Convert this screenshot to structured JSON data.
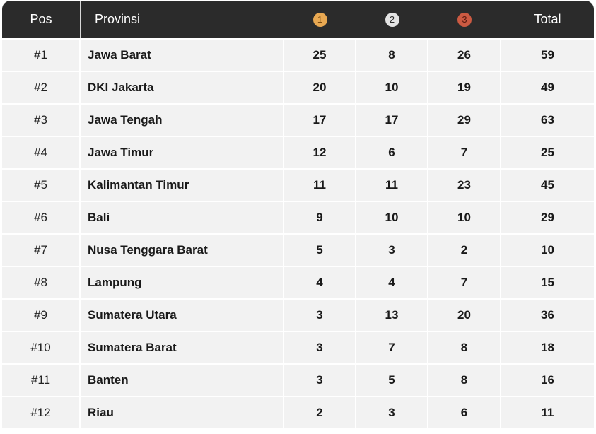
{
  "table": {
    "headers": {
      "pos": "Pos",
      "province": "Provinsi",
      "gold": "1",
      "silver": "2",
      "bronze": "3",
      "total": "Total"
    },
    "medal_colors": {
      "gold": "#e8a852",
      "silver": "#e3e3e3",
      "bronze": "#cc5a42"
    },
    "rows": [
      {
        "pos": "#1",
        "province": "Jawa Barat",
        "gold": "25",
        "silver": "8",
        "bronze": "26",
        "total": "59"
      },
      {
        "pos": "#2",
        "province": "DKI Jakarta",
        "gold": "20",
        "silver": "10",
        "bronze": "19",
        "total": "49"
      },
      {
        "pos": "#3",
        "province": "Jawa Tengah",
        "gold": "17",
        "silver": "17",
        "bronze": "29",
        "total": "63"
      },
      {
        "pos": "#4",
        "province": "Jawa Timur",
        "gold": "12",
        "silver": "6",
        "bronze": "7",
        "total": "25"
      },
      {
        "pos": "#5",
        "province": "Kalimantan Timur",
        "gold": "11",
        "silver": "11",
        "bronze": "23",
        "total": "45"
      },
      {
        "pos": "#6",
        "province": "Bali",
        "gold": "9",
        "silver": "10",
        "bronze": "10",
        "total": "29"
      },
      {
        "pos": "#7",
        "province": "Nusa Tenggara Barat",
        "gold": "5",
        "silver": "3",
        "bronze": "2",
        "total": "10"
      },
      {
        "pos": "#8",
        "province": "Lampung",
        "gold": "4",
        "silver": "4",
        "bronze": "7",
        "total": "15"
      },
      {
        "pos": "#9",
        "province": "Sumatera Utara",
        "gold": "3",
        "silver": "13",
        "bronze": "20",
        "total": "36"
      },
      {
        "pos": "#10",
        "province": "Sumatera Barat",
        "gold": "3",
        "silver": "7",
        "bronze": "8",
        "total": "18"
      },
      {
        "pos": "#11",
        "province": "Banten",
        "gold": "3",
        "silver": "5",
        "bronze": "8",
        "total": "16"
      },
      {
        "pos": "#12",
        "province": "Riau",
        "gold": "2",
        "silver": "3",
        "bronze": "6",
        "total": "11"
      }
    ]
  }
}
